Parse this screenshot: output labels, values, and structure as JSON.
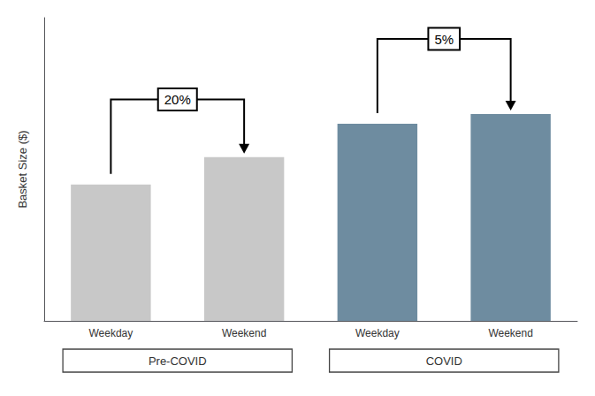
{
  "chart_data": {
    "type": "bar",
    "ylabel": "Basket Size ($)",
    "categories": [
      "Weekday",
      "Weekend",
      "Weekday",
      "Weekend"
    ],
    "values": [
      45,
      54,
      65,
      68.25
    ],
    "colors": [
      "#c8c8c8",
      "#c8c8c8",
      "#6e8ca0",
      "#6e8ca0"
    ],
    "groups": [
      {
        "text": "Pre-COVID",
        "categories": [
          0,
          1
        ]
      },
      {
        "text": "COVID",
        "categories": [
          2,
          3
        ]
      }
    ],
    "annotations": [
      {
        "text": "20%",
        "from": 0,
        "to": 1
      },
      {
        "text": "5%",
        "from": 2,
        "to": 3
      }
    ],
    "ylim": [
      0,
      100
    ],
    "yticks": [],
    "tick_labels": "x",
    "grid": false
  }
}
